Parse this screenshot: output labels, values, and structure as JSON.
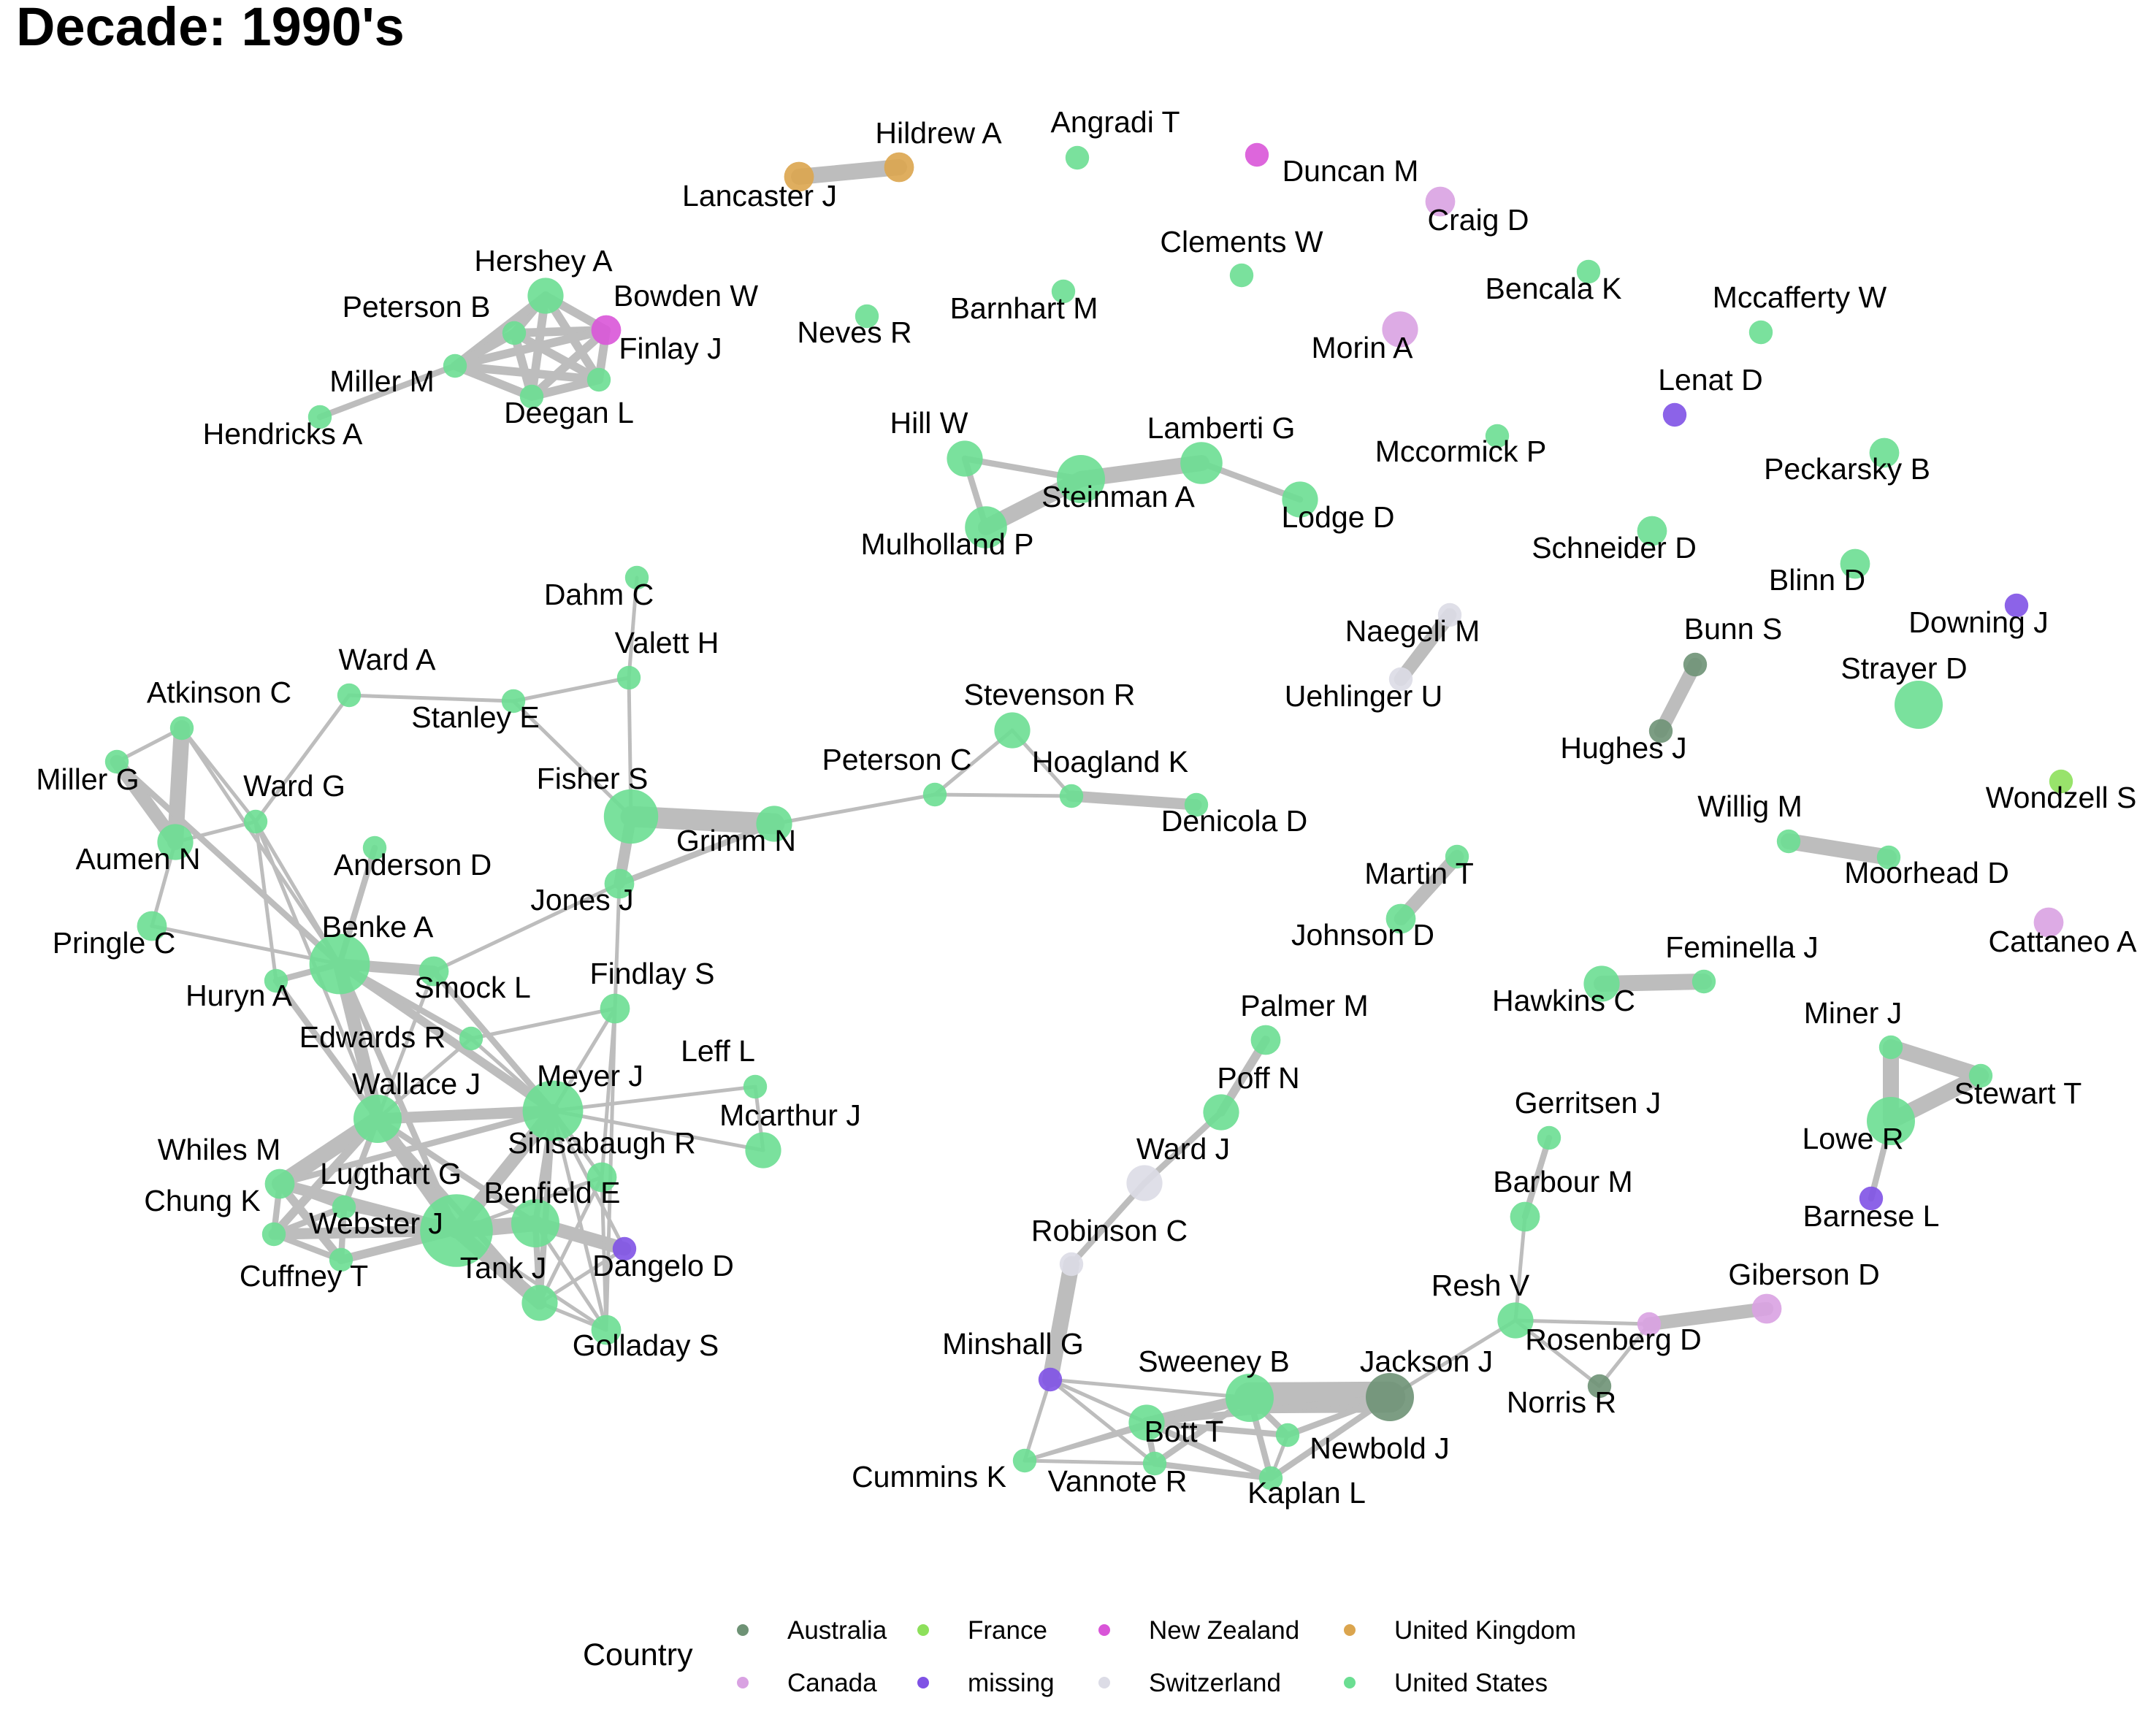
{
  "title": "Decade: 1990's",
  "colors": {
    "Australia": "#6e9275",
    "France": "#8de05b",
    "New Zealand": "#d955d8",
    "United Kingdom": "#dba54e",
    "Canada": "#d9a2e2",
    "missing": "#7f52e5",
    "Switzerland": "#dcdce6",
    "United States": "#6bde92",
    "edge": "#bdbdbd"
  },
  "legend": {
    "title": "Country",
    "entries": [
      "Australia",
      "France",
      "New Zealand",
      "United Kingdom",
      "Canada",
      "missing",
      "Switzerland",
      "United States"
    ]
  },
  "nodes": [
    {
      "name": "Hildrew A",
      "country": "United Kingdom",
      "size": 2
    },
    {
      "name": "Lancaster J",
      "country": "United Kingdom",
      "size": 2
    },
    {
      "name": "Angradi T",
      "country": "United States",
      "size": 1
    },
    {
      "name": "Duncan M",
      "country": "New Zealand",
      "size": 1
    },
    {
      "name": "Craig D",
      "country": "Canada",
      "size": 2
    },
    {
      "name": "Clements W",
      "country": "United States",
      "size": 1
    },
    {
      "name": "Bencala K",
      "country": "United States",
      "size": 1
    },
    {
      "name": "Hershey A",
      "country": "United States",
      "size": 3
    },
    {
      "name": "Bowden W",
      "country": "New Zealand",
      "size": 2
    },
    {
      "name": "Peterson B",
      "country": "United States",
      "size": 1
    },
    {
      "name": "Finlay J",
      "country": "United States",
      "size": 1
    },
    {
      "name": "Neves R",
      "country": "United States",
      "size": 1
    },
    {
      "name": "Barnhart M",
      "country": "United States",
      "size": 1
    },
    {
      "name": "Morin A",
      "country": "Canada",
      "size": 3
    },
    {
      "name": "Mccafferty W",
      "country": "United States",
      "size": 1
    },
    {
      "name": "Miller M",
      "country": "United States",
      "size": 1
    },
    {
      "name": "Hendricks A",
      "country": "United States",
      "size": 1
    },
    {
      "name": "Deegan L",
      "country": "United States",
      "size": 1
    },
    {
      "name": "Lenat D",
      "country": "missing",
      "size": 1
    },
    {
      "name": "Hill W",
      "country": "United States",
      "size": 3
    },
    {
      "name": "Lamberti G",
      "country": "United States",
      "size": 4
    },
    {
      "name": "Mccormick P",
      "country": "United States",
      "size": 1
    },
    {
      "name": "Peckarsky B",
      "country": "United States",
      "size": 2
    },
    {
      "name": "Steinman A",
      "country": "United States",
      "size": 5
    },
    {
      "name": "Lodge D",
      "country": "United States",
      "size": 3
    },
    {
      "name": "Mulholland P",
      "country": "United States",
      "size": 4
    },
    {
      "name": "Schneider D",
      "country": "United States",
      "size": 2
    },
    {
      "name": "Blinn D",
      "country": "United States",
      "size": 2
    },
    {
      "name": "Dahm C",
      "country": "United States",
      "size": 1
    },
    {
      "name": "Naegeli M",
      "country": "Switzerland",
      "size": 1
    },
    {
      "name": "Downing J",
      "country": "missing",
      "size": 1
    },
    {
      "name": "Valett H",
      "country": "United States",
      "size": 1
    },
    {
      "name": "Bunn S",
      "country": "Australia",
      "size": 1
    },
    {
      "name": "Strayer D",
      "country": "United States",
      "size": 5
    },
    {
      "name": "Uehlinger U",
      "country": "Switzerland",
      "size": 1
    },
    {
      "name": "Ward A",
      "country": "United States",
      "size": 1
    },
    {
      "name": "Atkinson C",
      "country": "United States",
      "size": 1
    },
    {
      "name": "Stevenson R",
      "country": "United States",
      "size": 3
    },
    {
      "name": "Stanley E",
      "country": "United States",
      "size": 1
    },
    {
      "name": "Hughes J",
      "country": "Australia",
      "size": 1
    },
    {
      "name": "Peterson C",
      "country": "United States",
      "size": 1
    },
    {
      "name": "Hoagland K",
      "country": "United States",
      "size": 1
    },
    {
      "name": "Fisher S",
      "country": "United States",
      "size": 6
    },
    {
      "name": "Miller G",
      "country": "United States",
      "size": 1
    },
    {
      "name": "Ward G",
      "country": "United States",
      "size": 1
    },
    {
      "name": "Wondzell S",
      "country": "France",
      "size": 1
    },
    {
      "name": "Grimm N",
      "country": "United States",
      "size": 3
    },
    {
      "name": "Denicola D",
      "country": "United States",
      "size": 1
    },
    {
      "name": "Willig M",
      "country": "United States",
      "size": 1
    },
    {
      "name": "Aumen N",
      "country": "United States",
      "size": 3
    },
    {
      "name": "Martin T",
      "country": "United States",
      "size": 1
    },
    {
      "name": "Anderson D",
      "country": "United States",
      "size": 1
    },
    {
      "name": "Moorhead D",
      "country": "United States",
      "size": 1
    },
    {
      "name": "Jones J",
      "country": "United States",
      "size": 2
    },
    {
      "name": "Johnson D",
      "country": "United States",
      "size": 2
    },
    {
      "name": "Pringle C",
      "country": "United States",
      "size": 2
    },
    {
      "name": "Benke A",
      "country": "United States",
      "size": 7
    },
    {
      "name": "Feminella J",
      "country": "United States",
      "size": 1
    },
    {
      "name": "Cattaneo A",
      "country": "Canada",
      "size": 2
    },
    {
      "name": "Huryn A",
      "country": "United States",
      "size": 1
    },
    {
      "name": "Smock L",
      "country": "United States",
      "size": 2
    },
    {
      "name": "Findlay S",
      "country": "United States",
      "size": 2
    },
    {
      "name": "Hawkins C",
      "country": "United States",
      "size": 3
    },
    {
      "name": "Edwards R",
      "country": "United States",
      "size": 1
    },
    {
      "name": "Palmer M",
      "country": "United States",
      "size": 2
    },
    {
      "name": "Miner J",
      "country": "United States",
      "size": 1
    },
    {
      "name": "Leff L",
      "country": "United States",
      "size": 1
    },
    {
      "name": "Wallace J",
      "country": "United States",
      "size": 5
    },
    {
      "name": "Meyer J",
      "country": "United States",
      "size": 7
    },
    {
      "name": "Poff N",
      "country": "United States",
      "size": 3
    },
    {
      "name": "Stewart T",
      "country": "United States",
      "size": 1
    },
    {
      "name": "Gerritsen J",
      "country": "United States",
      "size": 1
    },
    {
      "name": "Mcarthur J",
      "country": "United States",
      "size": 3
    },
    {
      "name": "Whiles M",
      "country": "United States",
      "size": 2
    },
    {
      "name": "Sinsabaugh R",
      "country": "United States",
      "size": 2
    },
    {
      "name": "Lowe R",
      "country": "United States",
      "size": 5
    },
    {
      "name": "Ward J",
      "country": "Switzerland",
      "size": 3
    },
    {
      "name": "Lugthart G",
      "country": "United States",
      "size": 1
    },
    {
      "name": "Chung K",
      "country": "United States",
      "size": 1
    },
    {
      "name": "Benfield E",
      "country": "United States",
      "size": 5
    },
    {
      "name": "Barbour M",
      "country": "United States",
      "size": 2
    },
    {
      "name": "Webster J",
      "country": "United States",
      "size": 9
    },
    {
      "name": "Barnese L",
      "country": "missing",
      "size": 1
    },
    {
      "name": "Robinson C",
      "country": "Switzerland",
      "size": 1
    },
    {
      "name": "Dangelo D",
      "country": "missing",
      "size": 1
    },
    {
      "name": "Cuffney T",
      "country": "United States",
      "size": 1
    },
    {
      "name": "Tank J",
      "country": "United States",
      "size": 3
    },
    {
      "name": "Giberson D",
      "country": "Canada",
      "size": 2
    },
    {
      "name": "Golladay S",
      "country": "United States",
      "size": 2
    },
    {
      "name": "Resh V",
      "country": "United States",
      "size": 3
    },
    {
      "name": "Rosenberg D",
      "country": "Canada",
      "size": 1
    },
    {
      "name": "Minshall G",
      "country": "missing",
      "size": 1
    },
    {
      "name": "Jackson J",
      "country": "Australia",
      "size": 5
    },
    {
      "name": "Sweeney B",
      "country": "United States",
      "size": 5
    },
    {
      "name": "Norris R",
      "country": "Australia",
      "size": 1
    },
    {
      "name": "Bott T",
      "country": "United States",
      "size": 3
    },
    {
      "name": "Newbold J",
      "country": "United States",
      "size": 1
    },
    {
      "name": "Cummins K",
      "country": "United States",
      "size": 1
    },
    {
      "name": "Vannote R",
      "country": "United States",
      "size": 1
    },
    {
      "name": "Kaplan L",
      "country": "United States",
      "size": 1
    }
  ],
  "edges": [
    [
      "Lancaster J",
      "Hildrew A",
      6
    ],
    [
      "Hershey A",
      "Bowden W",
      3
    ],
    [
      "Hershey A",
      "Peterson B",
      3
    ],
    [
      "Hershey A",
      "Finlay J",
      3
    ],
    [
      "Hershey A",
      "Deegan L",
      3
    ],
    [
      "Hershey A",
      "Miller M",
      3
    ],
    [
      "Bowden W",
      "Peterson B",
      3
    ],
    [
      "Bowden W",
      "Finlay J",
      3
    ],
    [
      "Bowden W",
      "Deegan L",
      3
    ],
    [
      "Bowden W",
      "Miller M",
      3
    ],
    [
      "Peterson B",
      "Finlay J",
      3
    ],
    [
      "Peterson B",
      "Deegan L",
      3
    ],
    [
      "Peterson B",
      "Miller M",
      3
    ],
    [
      "Finlay J",
      "Deegan L",
      3
    ],
    [
      "Finlay J",
      "Miller M",
      3
    ],
    [
      "Deegan L",
      "Miller M",
      3
    ],
    [
      "Miller M",
      "Hendricks A",
      2
    ],
    [
      "Hill W",
      "Steinman A",
      2
    ],
    [
      "Hill W",
      "Mulholland P",
      2
    ],
    [
      "Steinman A",
      "Mulholland P",
      6
    ],
    [
      "Steinman A",
      "Lamberti G",
      6
    ],
    [
      "Lamberti G",
      "Lodge D",
      2
    ],
    [
      "Naegeli M",
      "Uehlinger U",
      5
    ],
    [
      "Bunn S",
      "Hughes J",
      5
    ],
    [
      "Dahm C",
      "Valett H",
      1
    ],
    [
      "Valett H",
      "Stanley E",
      1
    ],
    [
      "Valett H",
      "Fisher S",
      1
    ],
    [
      "Ward A",
      "Stanley E",
      1
    ],
    [
      "Ward A",
      "Ward G",
      1
    ],
    [
      "Stanley E",
      "Fisher S",
      1
    ],
    [
      "Fisher S",
      "Grimm N",
      8
    ],
    [
      "Fisher S",
      "Jones J",
      4
    ],
    [
      "Grimm N",
      "Jones J",
      2
    ],
    [
      "Grimm N",
      "Peterson C",
      1
    ],
    [
      "Peterson C",
      "Hoagland K",
      1
    ],
    [
      "Peterson C",
      "Stevenson R",
      1
    ],
    [
      "Hoagland K",
      "Denicola D",
      4
    ],
    [
      "Stevenson R",
      "Hoagland K",
      1
    ],
    [
      "Jones J",
      "Findlay S",
      1
    ],
    [
      "Jones J",
      "Smock L",
      1
    ],
    [
      "Atkinson C",
      "Miller G",
      1
    ],
    [
      "Atkinson C",
      "Aumen N",
      6
    ],
    [
      "Atkinson C",
      "Ward G",
      1
    ],
    [
      "Atkinson C",
      "Benke A",
      1
    ],
    [
      "Miller G",
      "Aumen N",
      5
    ],
    [
      "Miller G",
      "Benke A",
      2
    ],
    [
      "Aumen N",
      "Pringle C",
      1
    ],
    [
      "Aumen N",
      "Ward G",
      1
    ],
    [
      "Ward G",
      "Huryn A",
      1
    ],
    [
      "Ward G",
      "Wallace J",
      1
    ],
    [
      "Ward G",
      "Benke A",
      1
    ],
    [
      "Pringle C",
      "Benke A",
      1
    ],
    [
      "Anderson D",
      "Benke A",
      2
    ],
    [
      "Benke A",
      "Huryn A",
      2
    ],
    [
      "Benke A",
      "Smock L",
      4
    ],
    [
      "Benke A",
      "Wallace J",
      5
    ],
    [
      "Benke A",
      "Meyer J",
      3
    ],
    [
      "Benke A",
      "Edwards R",
      2
    ],
    [
      "Benke A",
      "Webster J",
      2
    ],
    [
      "Huryn A",
      "Wallace J",
      2
    ],
    [
      "Smock L",
      "Meyer J",
      2
    ],
    [
      "Smock L",
      "Wallace J",
      1
    ],
    [
      "Edwards R",
      "Findlay S",
      1
    ],
    [
      "Edwards R",
      "Wallace J",
      1
    ],
    [
      "Edwards R",
      "Meyer J",
      1
    ],
    [
      "Findlay S",
      "Meyer J",
      1
    ],
    [
      "Findlay S",
      "Sinsabaugh R",
      1
    ],
    [
      "Findlay S",
      "Golladay S",
      1
    ],
    [
      "Wallace J",
      "Meyer J",
      4
    ],
    [
      "Wallace J",
      "Webster J",
      5
    ],
    [
      "Wallace J",
      "Whiles M",
      6
    ],
    [
      "Wallace J",
      "Lugthart G",
      2
    ],
    [
      "Wallace J",
      "Benfield E",
      2
    ],
    [
      "Wallace J",
      "Tank J",
      2
    ],
    [
      "Wallace J",
      "Chung K",
      3
    ],
    [
      "Meyer J",
      "Leff L",
      1
    ],
    [
      "Meyer J",
      "Mcarthur J",
      1
    ],
    [
      "Meyer J",
      "Webster J",
      5
    ],
    [
      "Meyer J",
      "Benfield E",
      2
    ],
    [
      "Meyer J",
      "Sinsabaugh R",
      1
    ],
    [
      "Meyer J",
      "Tank J",
      2
    ],
    [
      "Meyer J",
      "Golladay S",
      1
    ],
    [
      "Meyer J",
      "Dangelo D",
      1
    ],
    [
      "Meyer J",
      "Whiles M",
      2
    ],
    [
      "Leff L",
      "Mcarthur J",
      1
    ],
    [
      "Whiles M",
      "Chung K",
      2
    ],
    [
      "Whiles M",
      "Lugthart G",
      2
    ],
    [
      "Whiles M",
      "Webster J",
      4
    ],
    [
      "Whiles M",
      "Cuffney T",
      3
    ],
    [
      "Chung K",
      "Lugthart G",
      2
    ],
    [
      "Chung K",
      "Webster J",
      4
    ],
    [
      "Chung K",
      "Cuffney T",
      2
    ],
    [
      "Lugthart G",
      "Webster J",
      2
    ],
    [
      "Lugthart G",
      "Cuffney T",
      2
    ],
    [
      "Cuffney T",
      "Webster J",
      3
    ],
    [
      "Webster J",
      "Benfield E",
      6
    ],
    [
      "Webster J",
      "Tank J",
      5
    ],
    [
      "Webster J",
      "Golladay S",
      1
    ],
    [
      "Webster J",
      "Sinsabaugh R",
      1
    ],
    [
      "Benfield E",
      "Dangelo D",
      5
    ],
    [
      "Benfield E",
      "Tank J",
      2
    ],
    [
      "Benfield E",
      "Golladay S",
      1
    ],
    [
      "Sinsabaugh R",
      "Golladay S",
      1
    ],
    [
      "Sinsabaugh R",
      "Tank J",
      1
    ],
    [
      "Tank J",
      "Golladay S",
      1
    ],
    [
      "Tank J",
      "Dangelo D",
      1
    ],
    [
      "Martin T",
      "Johnson D",
      5
    ],
    [
      "Willig M",
      "Moorhead D",
      6
    ],
    [
      "Hawkins C",
      "Feminella J",
      6
    ],
    [
      "Miner J",
      "Stewart T",
      6
    ],
    [
      "Miner J",
      "Lowe R",
      6
    ],
    [
      "Stewart T",
      "Lowe R",
      6
    ],
    [
      "Lowe R",
      "Barnese L",
      2
    ],
    [
      "Palmer M",
      "Poff N",
      3
    ],
    [
      "Poff N",
      "Ward J",
      2
    ],
    [
      "Ward J",
      "Robinson C",
      2
    ],
    [
      "Robinson C",
      "Minshall G",
      6
    ],
    [
      "Minshall G",
      "Cummins K",
      1
    ],
    [
      "Minshall G",
      "Sweeney B",
      1
    ],
    [
      "Minshall G",
      "Bott T",
      1
    ],
    [
      "Minshall G",
      "Vannote R",
      1
    ],
    [
      "Minshall G",
      "Kaplan L",
      1
    ],
    [
      "Cummins K",
      "Sweeney B",
      1
    ],
    [
      "Cummins K",
      "Vannote R",
      1
    ],
    [
      "Cummins K",
      "Bott T",
      1
    ],
    [
      "Sweeney B",
      "Jackson J",
      12
    ],
    [
      "Sweeney B",
      "Bott T",
      4
    ],
    [
      "Sweeney B",
      "Newbold J",
      2
    ],
    [
      "Sweeney B",
      "Kaplan L",
      2
    ],
    [
      "Sweeney B",
      "Vannote R",
      2
    ],
    [
      "Bott T",
      "Kaplan L",
      2
    ],
    [
      "Bott T",
      "Vannote R",
      2
    ],
    [
      "Bott T",
      "Newbold J",
      2
    ],
    [
      "Bott T",
      "Jackson J",
      2
    ],
    [
      "Vannote R",
      "Kaplan L",
      2
    ],
    [
      "Newbold J",
      "Kaplan L",
      1
    ],
    [
      "Jackson J",
      "Kaplan L",
      2
    ],
    [
      "Jackson J",
      "Newbold J",
      2
    ],
    [
      "Jackson J",
      "Resh V",
      1
    ],
    [
      "Gerritsen J",
      "Barbour M",
      2
    ],
    [
      "Barbour M",
      "Resh V",
      1
    ],
    [
      "Resh V",
      "Rosenberg D",
      1
    ],
    [
      "Resh V",
      "Norris R",
      1
    ],
    [
      "Rosenberg D",
      "Norris R",
      1
    ],
    [
      "Rosenberg D",
      "Giberson D",
      5
    ]
  ]
}
